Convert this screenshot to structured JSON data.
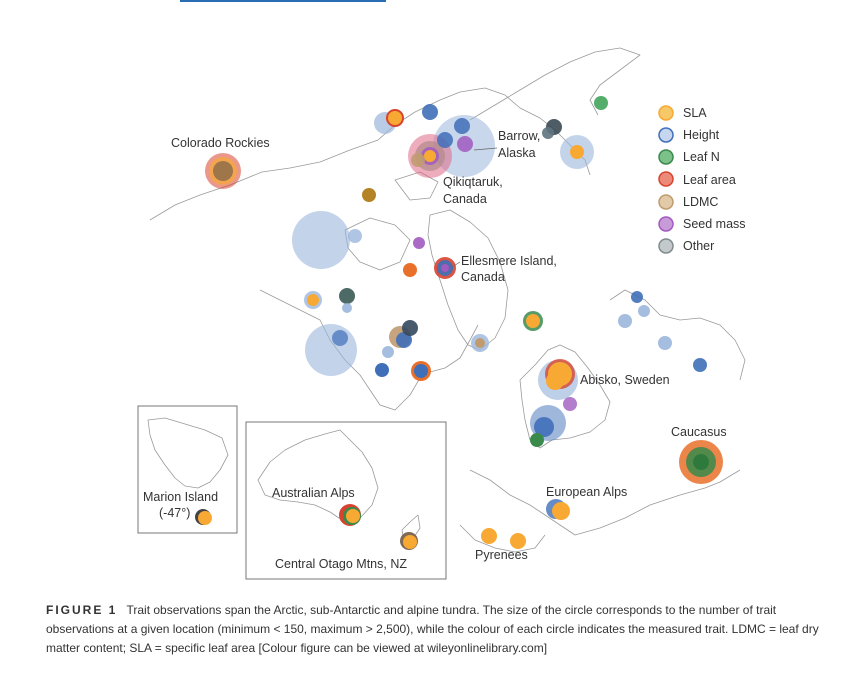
{
  "header_link_color": "#2a6db5",
  "legend": [
    {
      "label": "SLA",
      "color": "#f7a933"
    },
    {
      "label": "Height",
      "color": "#3f6fb8"
    },
    {
      "label": "Leaf N",
      "color": "#3a8a4c"
    },
    {
      "label": "Leaf area",
      "color": "#d8432f"
    },
    {
      "label": "LDMC",
      "color": "#c09b70"
    },
    {
      "label": "Seed mass",
      "color": "#a05bbf"
    },
    {
      "label": "Other",
      "color": "#7f8c8d"
    }
  ],
  "place_labels": {
    "colorado": "Colorado Rockies",
    "barrow_1": "Barrow,",
    "barrow_2": "Alaska",
    "qikiq_1": "Qikiqtaruk,",
    "qikiq_2": "Canada",
    "ellesmere_1": "Ellesmere Island,",
    "ellesmere_2": "Canada",
    "abisko": "Abisko, Sweden",
    "caucasus": "Caucasus",
    "european_alps": "European Alps",
    "pyrenees": "Pyrenees",
    "marion_1": "Marion Island",
    "marion_2": "(-47°)",
    "australian_alps": "Australian Alps",
    "otago": "Central Otago Mtns, NZ"
  },
  "caption": {
    "figure_label": "FIGURE 1",
    "text": "Trait observations span the Arctic, sub-Antarctic and alpine tundra. The size of the circle corresponds to the number of trait observations at a given location (minimum < 150, maximum > 2,500), while the colour of each circle indicates the measured trait. LDMC = leaf dry matter content; SLA = specific leaf area [Colour figure can be viewed at wileyonlinelibrary.com]"
  }
}
